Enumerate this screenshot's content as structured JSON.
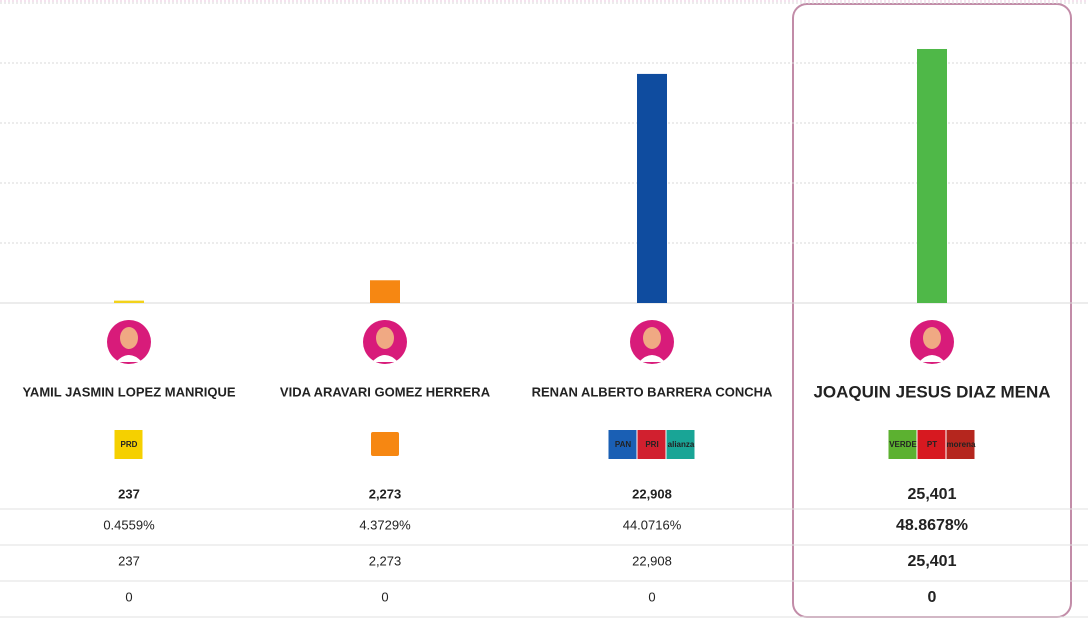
{
  "chart_data": {
    "type": "bar",
    "categories": [
      "YAMIL JASMIN LOPEZ MANRIQUE",
      "VIDA ARAVARI GOMEZ HERRERA",
      "RENAN ALBERTO BARRERA CONCHA",
      "JOAQUIN JESUS DIAZ MENA"
    ],
    "values": [
      237,
      2273,
      22908,
      25401
    ],
    "value_labels": [
      "237",
      "2,273",
      "22,908",
      "25,401"
    ],
    "colors": [
      "#f2d21b",
      "#f68712",
      "#0f4c9f",
      "#4fb848"
    ],
    "ylim": [
      0,
      30000
    ],
    "yticks": [
      0,
      6000,
      12000,
      18000,
      24000,
      30000
    ],
    "grid": true
  },
  "parties": [
    [
      {
        "name": "PRD",
        "color": "#f5d000"
      }
    ],
    [],
    [
      {
        "name": "PAN",
        "color": "#1a5fb4"
      },
      {
        "name": "PRI",
        "color": "#d1202f"
      },
      {
        "name": "alianza",
        "color": "#19a596"
      }
    ],
    [
      {
        "name": "VERDE",
        "color": "#5cb130"
      },
      {
        "name": "PT",
        "color": "#d71920"
      },
      {
        "name": "morena",
        "color": "#b5261e"
      }
    ]
  ],
  "table": {
    "rows": [
      [
        "0.4559%",
        "4.3729%",
        "44.0716%",
        "48.8678%"
      ],
      [
        "237",
        "2,273",
        "22,908",
        "25,401"
      ],
      [
        "0",
        "0",
        "0",
        "0"
      ]
    ]
  }
}
